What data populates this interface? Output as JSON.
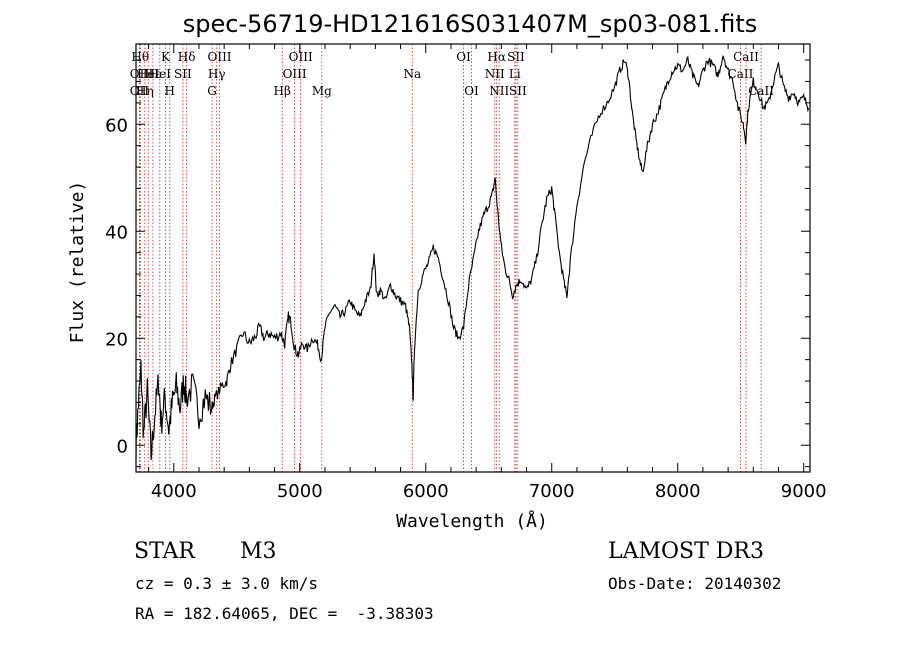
{
  "chart_data": {
    "type": "line",
    "title": "spec-56719-HD121616S031407M_sp03-081.fits",
    "xlabel": "Wavelength (Å)",
    "ylabel": "Flux (relative)",
    "xlim": [
      3700,
      9050
    ],
    "ylim": [
      -5,
      75
    ],
    "xticks": [
      4000,
      5000,
      6000,
      7000,
      8000,
      9000
    ],
    "yticks": [
      0,
      20,
      40,
      60
    ],
    "line_color": "#000000",
    "marker_color": "#cc2222",
    "spectrum_anchors": [
      [
        3700,
        0
      ],
      [
        3720,
        8
      ],
      [
        3740,
        14
      ],
      [
        3760,
        2
      ],
      [
        3790,
        10
      ],
      [
        3820,
        -2
      ],
      [
        3850,
        6
      ],
      [
        3880,
        12
      ],
      [
        3900,
        4
      ],
      [
        3930,
        9
      ],
      [
        3960,
        3
      ],
      [
        3990,
        8
      ],
      [
        4020,
        11
      ],
      [
        4050,
        7
      ],
      [
        4080,
        12
      ],
      [
        4100,
        9
      ],
      [
        4150,
        11
      ],
      [
        4200,
        6
      ],
      [
        4250,
        9
      ],
      [
        4300,
        7
      ],
      [
        4330,
        9
      ],
      [
        4380,
        11
      ],
      [
        4420,
        12
      ],
      [
        4450,
        15
      ],
      [
        4500,
        18
      ],
      [
        4550,
        21
      ],
      [
        4600,
        19
      ],
      [
        4640,
        20
      ],
      [
        4680,
        22
      ],
      [
        4720,
        20
      ],
      [
        4760,
        21
      ],
      [
        4800,
        20
      ],
      [
        4850,
        21
      ],
      [
        4880,
        19
      ],
      [
        4910,
        24
      ],
      [
        4930,
        23
      ],
      [
        4960,
        18
      ],
      [
        4990,
        17
      ],
      [
        5020,
        19
      ],
      [
        5060,
        18
      ],
      [
        5100,
        20
      ],
      [
        5140,
        19
      ],
      [
        5170,
        16
      ],
      [
        5200,
        22
      ],
      [
        5240,
        25
      ],
      [
        5280,
        26
      ],
      [
        5320,
        24
      ],
      [
        5360,
        25
      ],
      [
        5400,
        27
      ],
      [
        5440,
        25
      ],
      [
        5480,
        24
      ],
      [
        5520,
        27
      ],
      [
        5560,
        29
      ],
      [
        5590,
        36
      ],
      [
        5610,
        28
      ],
      [
        5640,
        29
      ],
      [
        5680,
        27
      ],
      [
        5720,
        30
      ],
      [
        5760,
        28
      ],
      [
        5800,
        27
      ],
      [
        5840,
        26
      ],
      [
        5870,
        22
      ],
      [
        5890,
        15
      ],
      [
        5900,
        9
      ],
      [
        5910,
        18
      ],
      [
        5940,
        29
      ],
      [
        5980,
        32
      ],
      [
        6020,
        34
      ],
      [
        6060,
        37
      ],
      [
        6100,
        35
      ],
      [
        6140,
        31
      ],
      [
        6180,
        27
      ],
      [
        6220,
        22
      ],
      [
        6260,
        20
      ],
      [
        6300,
        22
      ],
      [
        6340,
        30
      ],
      [
        6380,
        35
      ],
      [
        6420,
        40
      ],
      [
        6460,
        43
      ],
      [
        6500,
        45
      ],
      [
        6530,
        47
      ],
      [
        6550,
        50
      ],
      [
        6570,
        44
      ],
      [
        6600,
        37
      ],
      [
        6630,
        33
      ],
      [
        6660,
        31
      ],
      [
        6690,
        28
      ],
      [
        6720,
        30
      ],
      [
        6760,
        31
      ],
      [
        6800,
        29
      ],
      [
        6840,
        31
      ],
      [
        6880,
        35
      ],
      [
        6920,
        41
      ],
      [
        6960,
        46
      ],
      [
        7000,
        48
      ],
      [
        7020,
        44
      ],
      [
        7060,
        36
      ],
      [
        7100,
        30
      ],
      [
        7120,
        28
      ],
      [
        7150,
        35
      ],
      [
        7200,
        45
      ],
      [
        7260,
        53
      ],
      [
        7320,
        58
      ],
      [
        7380,
        62
      ],
      [
        7440,
        64
      ],
      [
        7500,
        67
      ],
      [
        7540,
        70
      ],
      [
        7580,
        72
      ],
      [
        7610,
        69
      ],
      [
        7640,
        62
      ],
      [
        7670,
        57
      ],
      [
        7700,
        53
      ],
      [
        7720,
        51
      ],
      [
        7760,
        56
      ],
      [
        7800,
        60
      ],
      [
        7840,
        62
      ],
      [
        7880,
        65
      ],
      [
        7920,
        68
      ],
      [
        7960,
        70
      ],
      [
        8000,
        71
      ],
      [
        8040,
        70
      ],
      [
        8080,
        72
      ],
      [
        8120,
        69
      ],
      [
        8160,
        67
      ],
      [
        8200,
        70
      ],
      [
        8240,
        72
      ],
      [
        8280,
        71
      ],
      [
        8320,
        69
      ],
      [
        8360,
        73
      ],
      [
        8400,
        70
      ],
      [
        8440,
        68
      ],
      [
        8480,
        63
      ],
      [
        8520,
        60
      ],
      [
        8540,
        57
      ],
      [
        8560,
        63
      ],
      [
        8600,
        68
      ],
      [
        8640,
        66
      ],
      [
        8680,
        63
      ],
      [
        8720,
        64
      ],
      [
        8760,
        68
      ],
      [
        8800,
        71
      ],
      [
        8840,
        67
      ],
      [
        8880,
        65
      ],
      [
        8920,
        66
      ],
      [
        8960,
        64
      ],
      [
        9000,
        65
      ],
      [
        9040,
        63
      ]
    ],
    "line_markers": [
      {
        "x": 3734,
        "label": "Hθ",
        "row": 1
      },
      {
        "x": 3727,
        "label": "OII",
        "row": 2
      },
      {
        "x": 3727,
        "label": "OII",
        "row": 3
      },
      {
        "x": 3770,
        "label": "Hη",
        "row": 3
      },
      {
        "x": 3797,
        "label": "HeI",
        "row": 2
      },
      {
        "x": 3835,
        "label": "Hε",
        "row": 2
      },
      {
        "x": 3889,
        "label": "HeI",
        "row": 2
      },
      {
        "x": 3934,
        "label": "K",
        "row": 1
      },
      {
        "x": 3968,
        "label": "H",
        "row": 3
      },
      {
        "x": 4072,
        "label": "SII",
        "row": 2
      },
      {
        "x": 4102,
        "label": "Hδ",
        "row": 1
      },
      {
        "x": 4304,
        "label": "G",
        "row": 3
      },
      {
        "x": 4341,
        "label": "Hγ",
        "row": 2
      },
      {
        "x": 4363,
        "label": "OIII",
        "row": 1
      },
      {
        "x": 4861,
        "label": "Hβ",
        "row": 3
      },
      {
        "x": 4959,
        "label": "OIII",
        "row": 2
      },
      {
        "x": 5007,
        "label": "OIII",
        "row": 1
      },
      {
        "x": 5175,
        "label": "Mg",
        "row": 3
      },
      {
        "x": 5893,
        "label": "Na",
        "row": 2
      },
      {
        "x": 6300,
        "label": "OI",
        "row": 1
      },
      {
        "x": 6363,
        "label": "OI",
        "row": 3
      },
      {
        "x": 6548,
        "label": "NII",
        "row": 2
      },
      {
        "x": 6563,
        "label": "Hα",
        "row": 1
      },
      {
        "x": 6583,
        "label": "NII",
        "row": 3
      },
      {
        "x": 6707,
        "label": "Li",
        "row": 2
      },
      {
        "x": 6716,
        "label": "SII",
        "row": 1
      },
      {
        "x": 6731,
        "label": "SII",
        "row": 3
      },
      {
        "x": 8498,
        "label": "CaII",
        "row": 2
      },
      {
        "x": 8542,
        "label": "CaII",
        "row": 1
      },
      {
        "x": 8662,
        "label": "CaII",
        "row": 3
      }
    ]
  },
  "info": {
    "object_type": "STAR",
    "subclass": "M3",
    "cz": "cz = 0.3 ± 3.0 km/s",
    "coords": "RA = 182.64065, DEC =  -3.38303",
    "survey": "LAMOST DR3",
    "obs_date": "Obs-Date: 20140302"
  }
}
